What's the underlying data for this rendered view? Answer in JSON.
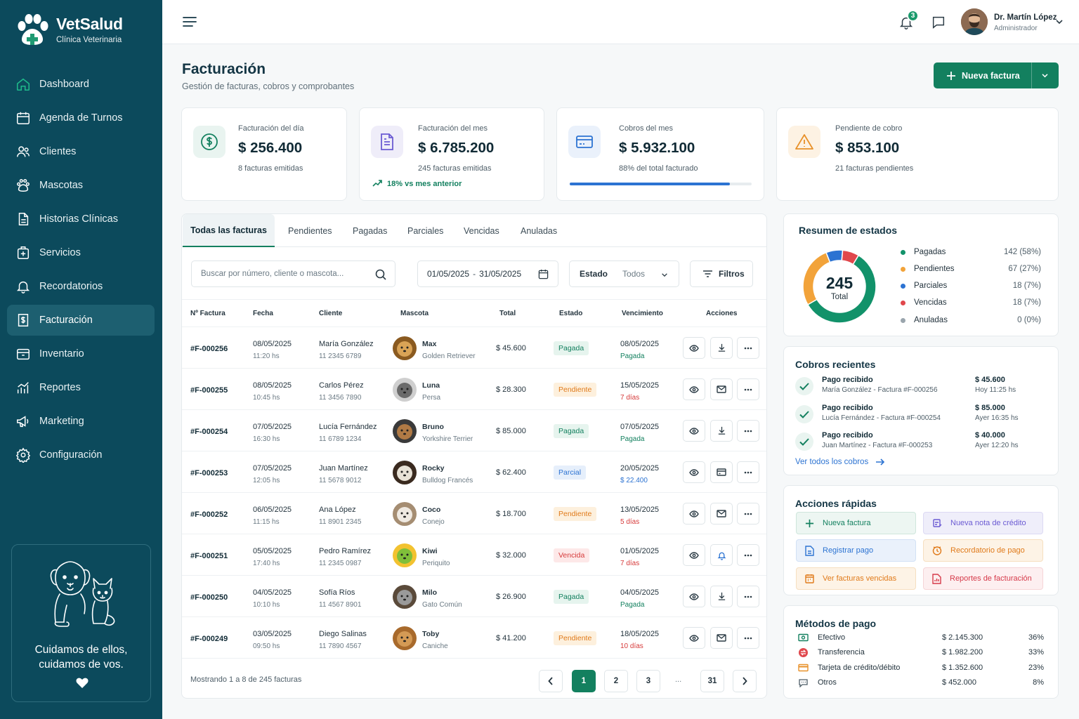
{
  "brand": {
    "name": "VetSalud",
    "subtitle": "Clínica Veterinaria"
  },
  "nav": [
    {
      "label": "Dashboard",
      "icon": "home-icon"
    },
    {
      "label": "Agenda de Turnos",
      "icon": "calendar-icon"
    },
    {
      "label": "Clientes",
      "icon": "users-icon"
    },
    {
      "label": "Mascotas",
      "icon": "paw-icon"
    },
    {
      "label": "Historias Clínicas",
      "icon": "document-icon"
    },
    {
      "label": "Servicios",
      "icon": "medical-kit-icon"
    },
    {
      "label": "Recordatorios",
      "icon": "bell-icon"
    },
    {
      "label": "Facturación",
      "icon": "invoice-icon",
      "active": true
    },
    {
      "label": "Inventario",
      "icon": "box-icon"
    },
    {
      "label": "Reportes",
      "icon": "bar-chart-icon"
    },
    {
      "label": "Marketing",
      "icon": "megaphone-icon"
    },
    {
      "label": "Configuración",
      "icon": "gear-icon"
    }
  ],
  "promo": {
    "line1": "Cuidamos de ellos,",
    "line2": "cuidamos de vos."
  },
  "topbar": {
    "notifications": "3",
    "user_name": "Dr. Martín López",
    "user_role": "Administrador"
  },
  "page": {
    "title": "Facturación",
    "subtitle": "Gestión de facturas, cobros y comprobantes",
    "new_button": "Nueva factura"
  },
  "kpis": [
    {
      "label": "Facturación del día",
      "value": "$ 256.400",
      "note": "8 facturas emitidas",
      "icon": "dollar-circle-icon"
    },
    {
      "label": "Facturación del mes",
      "value": "$ 6.785.200",
      "note": "245 facturas emitidas",
      "trend": "18% vs mes anterior",
      "icon": "invoice-icon"
    },
    {
      "label": "Cobros del mes",
      "value": "$ 5.932.100",
      "note": "88% del total facturado",
      "progress": 0.88,
      "icon": "credit-card-icon"
    },
    {
      "label": "Pendiente de cobro",
      "value": "$ 853.100",
      "note": "21 facturas pendientes",
      "icon": "warning-icon"
    }
  ],
  "tabs": [
    "Todas las facturas",
    "Pendientes",
    "Pagadas",
    "Parciales",
    "Vencidas",
    "Anuladas"
  ],
  "filters": {
    "search_placeholder": "Buscar por número, cliente o mascota...",
    "date_from": "01/05/2025",
    "date_sep": "-",
    "date_to": "31/05/2025",
    "status_label": "Estado",
    "status_value": "Todos",
    "filters_button": "Filtros"
  },
  "table": {
    "headers": [
      "Nº Factura",
      "Fecha",
      "Cliente",
      "Mascota",
      "Total",
      "Estado",
      "Vencimiento",
      "Acciones"
    ],
    "rows": [
      {
        "id": "#F-000256",
        "date": "08/05/2025",
        "time": "11:20 hs",
        "client": "María González",
        "phone": "11 2345 6789",
        "pet": "Max",
        "breed": "Golden Retriever",
        "total": "$ 45.600",
        "status": "Pagada",
        "due": "08/05/2025",
        "due_note": "Pagada",
        "action": "download-icon"
      },
      {
        "id": "#F-000255",
        "date": "08/05/2025",
        "time": "10:45 hs",
        "client": "Carlos Pérez",
        "phone": "11 3456 7890",
        "pet": "Luna",
        "breed": "Persa",
        "total": "$ 28.300",
        "status": "Pendiente",
        "due": "15/05/2025",
        "due_note": "7 días",
        "action": "mail-icon"
      },
      {
        "id": "#F-000254",
        "date": "07/05/2025",
        "time": "16:30 hs",
        "client": "Lucía Fernández",
        "phone": "11 6789 1234",
        "pet": "Bruno",
        "breed": "Yorkshire Terrier",
        "total": "$ 85.000",
        "status": "Pagada",
        "due": "07/05/2025",
        "due_note": "Pagada",
        "action": "download-icon"
      },
      {
        "id": "#F-000253",
        "date": "07/05/2025",
        "time": "12:05 hs",
        "client": "Juan Martínez",
        "phone": "11 5678 9012",
        "pet": "Rocky",
        "breed": "Bulldog Francés",
        "total": "$ 62.400",
        "status": "Parcial",
        "due": "20/05/2025",
        "due_note": "$ 22.400",
        "action": "credit-card-icon"
      },
      {
        "id": "#F-000252",
        "date": "06/05/2025",
        "time": "11:15 hs",
        "client": "Ana López",
        "phone": "11 8901 2345",
        "pet": "Coco",
        "breed": "Conejo",
        "total": "$ 18.700",
        "status": "Pendiente",
        "due": "13/05/2025",
        "due_note": "5 días",
        "action": "mail-icon"
      },
      {
        "id": "#F-000251",
        "date": "05/05/2025",
        "time": "17:40 hs",
        "client": "Pedro Ramírez",
        "phone": "11 2345 0987",
        "pet": "Kiwi",
        "breed": "Periquito",
        "total": "$ 32.000",
        "status": "Vencida",
        "due": "01/05/2025",
        "due_note": "7 días",
        "action": "bell-icon"
      },
      {
        "id": "#F-000250",
        "date": "04/05/2025",
        "time": "10:10 hs",
        "client": "Sofía Ríos",
        "phone": "11 4567 8901",
        "pet": "Milo",
        "breed": "Gato Común",
        "total": "$ 26.900",
        "status": "Pagada",
        "due": "04/05/2025",
        "due_note": "Pagada",
        "action": "download-icon"
      },
      {
        "id": "#F-000249",
        "date": "03/05/2025",
        "time": "09:50 hs",
        "client": "Diego Salinas",
        "phone": "11 7890 4567",
        "pet": "Toby",
        "breed": "Caniche",
        "total": "$ 41.200",
        "status": "Pendiente",
        "due": "18/05/2025",
        "due_note": "10 días",
        "action": "mail-icon"
      }
    ],
    "footer": "Mostrando 1 a 8 de 245 facturas",
    "pages": [
      "1",
      "2",
      "3",
      "...",
      "31"
    ]
  },
  "status_colors": {
    "Pagada": "#13805f",
    "Pendiente": "#e8912a",
    "Parcial": "#2c73d2",
    "Vencida": "#d63a3a"
  },
  "summary": {
    "title": "Resumen de estados",
    "total": "245",
    "total_label": "Total",
    "items": [
      {
        "label": "Pagadas",
        "value": "142 (58%)",
        "count": 142,
        "color": "#12926a"
      },
      {
        "label": "Pendientes",
        "value": "67 (27%)",
        "count": 67,
        "color": "#f2a33a"
      },
      {
        "label": "Parciales",
        "value": "18 (7%)",
        "count": 18,
        "color": "#2c73d2"
      },
      {
        "label": "Vencidas",
        "value": "18 (7%)",
        "count": 18,
        "color": "#e0474c"
      },
      {
        "label": "Anuladas",
        "value": "0 (0%)",
        "count": 0,
        "color": "#9aa5ad"
      }
    ]
  },
  "cobros": {
    "title": "Cobros recientes",
    "items": [
      {
        "title": "Pago recibido",
        "detail": "María González - Factura #F-000256",
        "amount": "$ 45.600",
        "when": "Hoy 11:25 hs"
      },
      {
        "title": "Pago recibido",
        "detail": "Lucía Fernández - Factura #F-000254",
        "amount": "$ 85.000",
        "when": "Ayer 16:35 hs"
      },
      {
        "title": "Pago recibido",
        "detail": "Juan Martínez - Factura #F-000253",
        "amount": "$ 40.000",
        "when": "Ayer 12:20 hs"
      }
    ],
    "link": "Ver todos los cobros"
  },
  "quick": {
    "title": "Acciones rápidas",
    "items": [
      {
        "label": "Nueva factura",
        "icon": "plus-icon"
      },
      {
        "label": "Nueva nota de crédito",
        "icon": "credit-note-icon"
      },
      {
        "label": "Registrar pago",
        "icon": "document-icon"
      },
      {
        "label": "Recordatorio de pago",
        "icon": "clock-icon"
      },
      {
        "label": "Ver facturas vencidas",
        "icon": "calendar-icon"
      },
      {
        "label": "Reportes de facturación",
        "icon": "report-icon"
      }
    ]
  },
  "methods": {
    "title": "Métodos de pago",
    "items": [
      {
        "label": "Efectivo",
        "amount": "$ 2.145.300",
        "pct": "36%",
        "icon": "cash-icon"
      },
      {
        "label": "Transferencia",
        "amount": "$ 1.982.200",
        "pct": "33%",
        "icon": "transfer-icon"
      },
      {
        "label": "Tarjeta de crédito/débito",
        "amount": "$ 1.352.600",
        "pct": "23%",
        "icon": "credit-card-icon"
      },
      {
        "label": "Otros",
        "amount": "$ 452.000",
        "pct": "8%",
        "icon": "chat-icon"
      }
    ]
  }
}
